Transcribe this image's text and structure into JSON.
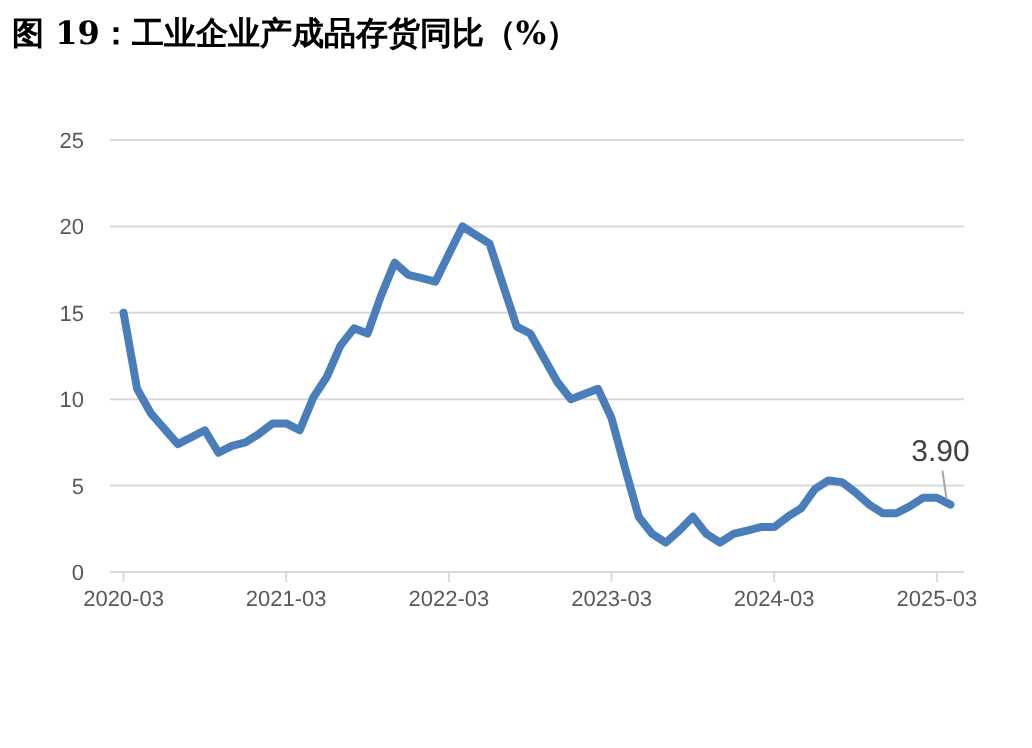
{
  "chart_data": {
    "type": "line",
    "title": "图 19：工业企业产成品存货同比（%）",
    "x": [
      "2020-03",
      "2020-04",
      "2020-05",
      "2020-06",
      "2020-07",
      "2020-08",
      "2020-09",
      "2020-10",
      "2020-11",
      "2020-12",
      "2021-01",
      "2021-02",
      "2021-03",
      "2021-04",
      "2021-05",
      "2021-06",
      "2021-07",
      "2021-08",
      "2021-09",
      "2021-10",
      "2021-11",
      "2021-12",
      "2022-01",
      "2022-02",
      "2022-03",
      "2022-04",
      "2022-05",
      "2022-06",
      "2022-07",
      "2022-08",
      "2022-09",
      "2022-10",
      "2022-11",
      "2022-12",
      "2023-01",
      "2023-02",
      "2023-03",
      "2023-04",
      "2023-05",
      "2023-06",
      "2023-07",
      "2023-08",
      "2023-09",
      "2023-10",
      "2023-11",
      "2023-12",
      "2024-01",
      "2024-02",
      "2024-03",
      "2024-04",
      "2024-05",
      "2024-06",
      "2024-07",
      "2024-08",
      "2024-09",
      "2024-10",
      "2024-11",
      "2024-12",
      "2025-01",
      "2025-02",
      "2025-03",
      "2025-04"
    ],
    "series": [
      {
        "color": "#4a7ebb",
        "values": [
          15.0,
          10.6,
          9.2,
          8.3,
          7.4,
          7.8,
          8.2,
          6.9,
          7.3,
          7.5,
          8.0,
          8.6,
          8.6,
          8.2,
          10.1,
          11.3,
          13.1,
          14.1,
          13.8,
          16.0,
          17.9,
          17.2,
          17.0,
          16.8,
          18.4,
          20.0,
          19.5,
          19.0,
          16.6,
          14.2,
          13.8,
          12.4,
          11.0,
          10.0,
          10.3,
          10.6,
          8.9,
          6.0,
          3.2,
          2.2,
          1.7,
          2.4,
          3.2,
          2.2,
          1.7,
          2.2,
          2.4,
          2.6,
          2.6,
          3.2,
          3.7,
          4.8,
          5.3,
          5.2,
          4.6,
          3.9,
          3.4,
          3.4,
          3.8,
          4.3,
          4.3,
          3.9
        ]
      }
    ],
    "xlim": [
      "2020-02",
      "2025-05"
    ],
    "xticks": [
      "2020-03",
      "2021-03",
      "2022-03",
      "2023-03",
      "2024-03",
      "2025-03"
    ],
    "ylim": [
      0,
      25
    ],
    "yticks": [
      0,
      5,
      10,
      15,
      20,
      25
    ],
    "grid": "y",
    "marker": "none",
    "line_style": "solid",
    "annotations": [
      {
        "text": "3.90",
        "x": "2025-04",
        "y": 3.9
      }
    ]
  }
}
